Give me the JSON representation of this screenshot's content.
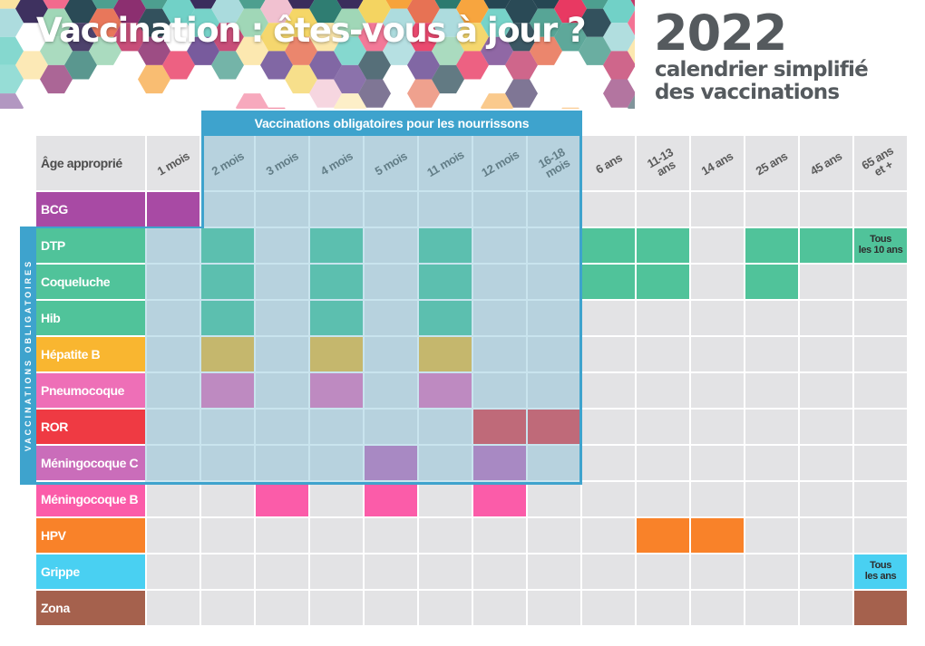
{
  "title": "Vaccination : êtes-vous à jour ?",
  "year": "2022",
  "subtitle": [
    "calendrier simplifié",
    "des vaccinations"
  ],
  "infant_banner": "Vaccinations obligatoires pour les nourrissons",
  "side_label": "VACCINATIONS OBLIGATOIRES",
  "header_label": "Âge approprié",
  "ages": [
    "1 mois",
    "2 mois",
    "3 mois",
    "4 mois",
    "5 mois",
    "11 mois",
    "12 mois",
    "16-18\nmois",
    "6 ans",
    "11-13\nans",
    "14 ans",
    "25 ans",
    "45 ans",
    "65 ans\net +"
  ],
  "colors": {
    "infant_highlight": "#3ea3cd",
    "empty_cell": "#e3e3e5",
    "BCG": "#a84aa4",
    "DTP": "#50c39a",
    "Coqueluche": "#50c39a",
    "Hib": "#50c39a",
    "Hepatite B": "#f9b630",
    "Pneumocoque": "#ee6fb7",
    "ROR": "#ef3a43",
    "Meningocoque C": "#ca6dba",
    "Meningocoque B": "#fb5ca9",
    "HPV": "#f98229",
    "Grippe": "#49d0f2",
    "Zona": "#a5614d"
  },
  "vaccines": [
    {
      "name": "BCG",
      "color": "#a84aa4",
      "doses": [
        0
      ],
      "notes": {}
    },
    {
      "name": "DTP",
      "color": "#50c39a",
      "doses": [
        1,
        3,
        5,
        8,
        9,
        11,
        12,
        13
      ],
      "notes": {
        "13": "Tous\nles 10 ans"
      }
    },
    {
      "name": "Coqueluche",
      "color": "#50c39a",
      "doses": [
        1,
        3,
        5,
        8,
        9,
        11
      ],
      "notes": {}
    },
    {
      "name": "Hib",
      "color": "#50c39a",
      "doses": [
        1,
        3,
        5
      ],
      "notes": {}
    },
    {
      "name": "Hépatite B",
      "color": "#f9b630",
      "doses": [
        1,
        3,
        5
      ],
      "notes": {}
    },
    {
      "name": "Pneumocoque",
      "color": "#ee6fb7",
      "doses": [
        1,
        3,
        5
      ],
      "notes": {}
    },
    {
      "name": "ROR",
      "color": "#ef3a43",
      "doses": [
        6,
        7
      ],
      "notes": {}
    },
    {
      "name": "Méningocoque C",
      "color": "#ca6dba",
      "doses": [
        4,
        6
      ],
      "notes": {}
    },
    {
      "name": "Méningocoque B",
      "color": "#fb5ca9",
      "doses": [
        2,
        4,
        6
      ],
      "notes": {}
    },
    {
      "name": "HPV",
      "color": "#f98229",
      "doses": [
        9,
        10
      ],
      "notes": {}
    },
    {
      "name": "Grippe",
      "color": "#49d0f2",
      "doses": [
        13
      ],
      "notes": {
        "13": "Tous\nles ans"
      }
    },
    {
      "name": "Zona",
      "color": "#a5614d",
      "doses": [
        13
      ],
      "notes": {}
    }
  ]
}
